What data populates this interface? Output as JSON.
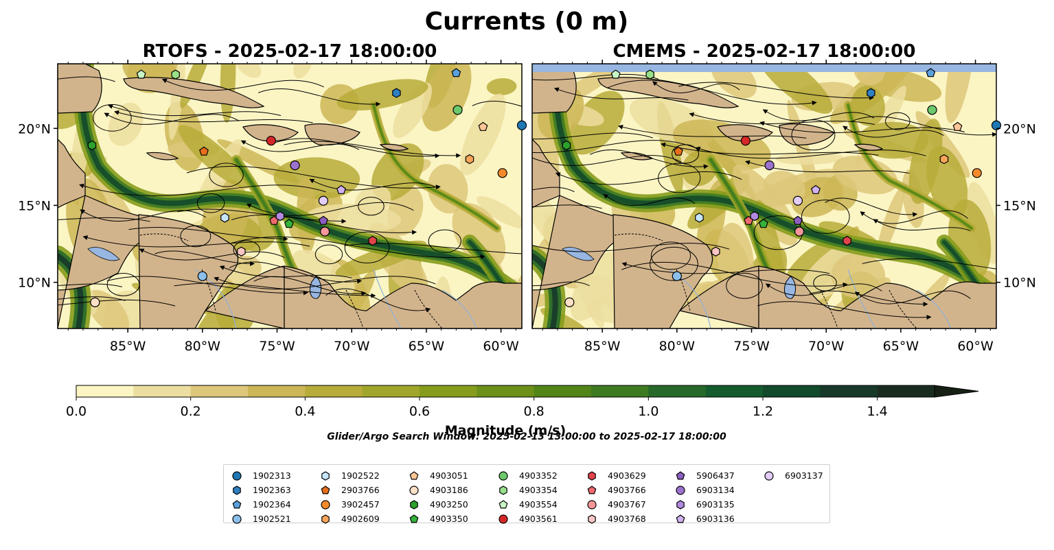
{
  "title": "Currents (0 m)",
  "panels": [
    {
      "title": "RTOFS - 2025-02-17 18:00:00"
    },
    {
      "title": "CMEMS - 2025-02-17 18:00:00"
    }
  ],
  "colorbar": {
    "label": "Magnitude (m/s)",
    "ticks": [
      "0.0",
      "0.2",
      "0.4",
      "0.6",
      "0.8",
      "1.0",
      "1.2",
      "1.4"
    ],
    "colors": [
      "#fbf5c4",
      "#ecdea0",
      "#ddc77a",
      "#ccb656",
      "#b7ab3a",
      "#a0a62a",
      "#869c1c",
      "#6c9018",
      "#518518",
      "#3d7a22",
      "#27692a",
      "#145c2d",
      "#124a2c",
      "#17392a",
      "#1a2c20",
      "#162015"
    ]
  },
  "search_window": "Glider/Argo Search Window: 2025-02-13 13:00:00 to 2025-02-17 18:00:00",
  "chart_data": {
    "type": "map",
    "xlabel_ticks": [
      "85°W",
      "80°W",
      "75°W",
      "70°W",
      "65°W",
      "60°W"
    ],
    "x_tick_values": [
      -85,
      -80,
      -75,
      -70,
      -65,
      -60
    ],
    "ylabel_ticks": [
      "10°N",
      "15°N",
      "20°N"
    ],
    "y_tick_values": [
      10,
      15,
      20
    ],
    "xlim": [
      -89.7,
      -58.6
    ],
    "ylim": [
      7.0,
      24.2
    ],
    "colorbar_range": [
      0,
      1.5
    ],
    "floats": [
      {
        "id": "1902313",
        "marker": "circle",
        "color": "#1f77b4",
        "lon": -58.6,
        "lat": 20.2
      },
      {
        "id": "1902363",
        "marker": "hexagon",
        "color": "#2f7fc1",
        "lon": -67.0,
        "lat": 22.3
      },
      {
        "id": "1902364",
        "marker": "pentagon",
        "color": "#5aa0dc",
        "lon": -63.0,
        "lat": 23.6
      },
      {
        "id": "1902521",
        "marker": "circle",
        "color": "#8cc0ec",
        "lon": -80.0,
        "lat": 10.4
      },
      {
        "id": "1902522",
        "marker": "hexagon",
        "color": "#c7e5fb",
        "lon": -78.5,
        "lat": 14.2
      },
      {
        "id": "2903766",
        "marker": "pentagon",
        "color": "#e8701c",
        "lon": -79.9,
        "lat": 18.5
      },
      {
        "id": "3902457",
        "marker": "circle",
        "color": "#f58a2c",
        "lon": -59.9,
        "lat": 17.1
      },
      {
        "id": "4902609",
        "marker": "hexagon",
        "color": "#f8a55a",
        "lon": -62.1,
        "lat": 18.0
      },
      {
        "id": "4903051",
        "marker": "pentagon",
        "color": "#fdc596",
        "lon": -61.2,
        "lat": 20.1
      },
      {
        "id": "4903186",
        "marker": "circle",
        "color": "#fde0c6",
        "lon": -87.2,
        "lat": 8.7
      },
      {
        "id": "4903250",
        "marker": "hexagon",
        "color": "#2ca02c",
        "lon": -87.4,
        "lat": 18.9
      },
      {
        "id": "4903350",
        "marker": "pentagon",
        "color": "#35b23a",
        "lon": -74.2,
        "lat": 13.8
      },
      {
        "id": "4903352",
        "marker": "circle",
        "color": "#6cc96c",
        "lon": -62.9,
        "lat": 21.2
      },
      {
        "id": "4903354",
        "marker": "hexagon",
        "color": "#98df8a",
        "lon": -81.8,
        "lat": 23.5
      },
      {
        "id": "4903554",
        "marker": "pentagon",
        "color": "#c8f7c5",
        "lon": -84.1,
        "lat": 23.5
      },
      {
        "id": "4903561",
        "marker": "circle",
        "color": "#d62728",
        "lon": -75.4,
        "lat": 19.2
      },
      {
        "id": "4903629",
        "marker": "hexagon",
        "color": "#e0444a",
        "lon": -68.6,
        "lat": 12.7
      },
      {
        "id": "4903766",
        "marker": "pentagon",
        "color": "#ee6a6f",
        "lon": -75.2,
        "lat": 14.0
      },
      {
        "id": "4903767",
        "marker": "circle",
        "color": "#f5969a",
        "lon": -71.8,
        "lat": 13.3
      },
      {
        "id": "4903768",
        "marker": "hexagon",
        "color": "#fbc6c6",
        "lon": -77.4,
        "lat": 12.0
      },
      {
        "id": "5906437",
        "marker": "pentagon",
        "color": "#8c5ec0",
        "lon": -71.9,
        "lat": 14.0
      },
      {
        "id": "6903134",
        "marker": "circle",
        "color": "#9c72cf",
        "lon": -73.8,
        "lat": 17.6
      },
      {
        "id": "6903135",
        "marker": "hexagon",
        "color": "#b18ae0",
        "lon": -74.8,
        "lat": 14.3
      },
      {
        "id": "6903136",
        "marker": "pentagon",
        "color": "#cfb2ef",
        "lon": -70.7,
        "lat": 16.0
      },
      {
        "id": "6903137",
        "marker": "circle",
        "color": "#e2cdf7",
        "lon": -71.9,
        "lat": 15.3
      }
    ]
  }
}
